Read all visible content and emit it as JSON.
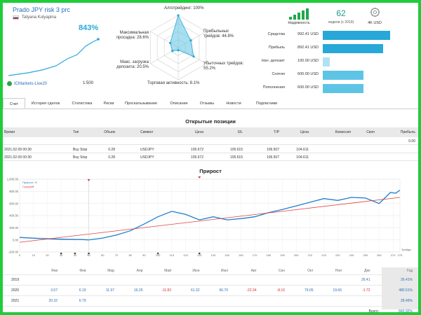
{
  "header": {
    "title": "Prado JPY risk 3 prc",
    "author": "Tatyana Kulyapina",
    "growth_pct": "843%",
    "broker": "ICMarkets-Live20",
    "leverage": "1:500"
  },
  "radar": {
    "labels": {
      "algo": "Алготрейдинг: 100%",
      "profit_trades": "Прибыльных трейдов: 44.8%",
      "loss_trades": "Убыточных трейдов: 55.2%",
      "activity": "Торговая активность: 8.1%",
      "load": "Макс. загрузка депозита: 20.5%",
      "drawdown": "Максимальная просадка: 28.6%"
    },
    "values": [
      1.0,
      0.448,
      0.552,
      0.081,
      0.205,
      0.286
    ]
  },
  "stats": {
    "reliability_label": "Надежность",
    "reliability_level": 5,
    "weeks_value": "62",
    "weeks_label": "недели (с 2019)",
    "deposit_label": "4K USD"
  },
  "finance": [
    {
      "label": "Средства",
      "value": "992.41 USD",
      "fill": 1.0
    },
    {
      "label": "Прибыль",
      "value": "892.41 USD",
      "fill": 0.9
    },
    {
      "label": "Нач. депозит",
      "value": "100.00 USD",
      "fill": 0.1
    },
    {
      "label": "Снятия",
      "value": "600.00 USD",
      "fill": 0.6
    },
    {
      "label": "Пополнения",
      "value": "600.00 USD",
      "fill": 0.6
    }
  ],
  "tabs": [
    "Счет",
    "История сделок",
    "Статистика",
    "Риски",
    "Проскальзывание",
    "Описание",
    "Отзывы",
    "Новости",
    "Подписчики"
  ],
  "positions": {
    "title": "Открытые позиции",
    "headers": [
      "Время",
      "Тип",
      "Объем",
      "Символ",
      "Цена",
      "S/L",
      "T/P",
      "Цена",
      "Комиссия",
      "Своп",
      "Прибыль"
    ],
    "summary_profit": "0.00",
    "rows": [
      [
        "2021.02.09 00:30",
        "Buy Stop",
        "0.28",
        "USDJPY",
        "105.672",
        "105.615",
        "106.507",
        "104.611",
        "",
        "",
        ""
      ],
      [
        "2021.02.09 00:30",
        "Buy Stop",
        "0.28",
        "USDJPY",
        "105.672",
        "105.615",
        "106.507",
        "104.611",
        "",
        "",
        ""
      ]
    ]
  },
  "growth": {
    "title": "Прирост",
    "legend": [
      "Прирост, %",
      "Средний"
    ],
    "yticks": [
      "1,000.00",
      "800.00",
      "600.00",
      "400.00",
      "200.00",
      "0.00",
      "-200.00"
    ],
    "xticks": [
      "0",
      "10",
      "20",
      "30",
      "40",
      "50",
      "60",
      "70",
      "80",
      "90",
      "100",
      "110",
      "120",
      "130",
      "140",
      "150",
      "160",
      "170",
      "180",
      "190",
      "200",
      "210",
      "220",
      "230",
      "240",
      "250",
      "260",
      "270",
      "275"
    ],
    "x_axis_label": "Трейды"
  },
  "chart_data": {
    "type": "line",
    "ylim": [
      -200,
      1000
    ],
    "xlim": [
      0,
      275
    ],
    "series": [
      {
        "name": "Прирост, %",
        "x": [
          0,
          15,
          30,
          45,
          50,
          60,
          70,
          80,
          90,
          100,
          110,
          120,
          130,
          140,
          150,
          160,
          170,
          180,
          190,
          200,
          210,
          220,
          230,
          240,
          250,
          260,
          268,
          272,
          275
        ],
        "values": [
          40,
          20,
          10,
          5,
          0,
          30,
          80,
          150,
          260,
          380,
          470,
          420,
          330,
          380,
          330,
          350,
          380,
          450,
          500,
          560,
          620,
          680,
          650,
          700,
          690,
          600,
          780,
          770,
          820
        ]
      },
      {
        "name": "Средний",
        "x": [
          0,
          275
        ],
        "values": [
          -40,
          700
        ]
      }
    ]
  },
  "monthly": {
    "months": [
      "Янв",
      "Фев",
      "Мар",
      "Апр",
      "Май",
      "Июн",
      "Июл",
      "Авг",
      "Сен",
      "Окт",
      "Ноя",
      "Дек",
      "Год"
    ],
    "years": [
      {
        "year": "2019",
        "cells": [
          "",
          "",
          "",
          "",
          "",
          "",
          "",
          "",
          "",
          "",
          "",
          "26.41"
        ],
        "total": "26.41%"
      },
      {
        "year": "2020",
        "cells": [
          "3.57",
          "6.19",
          "11.97",
          "16.25",
          "-11.83",
          "61.32",
          "66.70",
          "-22.34",
          "-8.16",
          "79.05",
          "19.66",
          "-1.72"
        ],
        "total": "480.51%"
      },
      {
        "year": "2021",
        "cells": [
          "20.32",
          "6.79",
          "",
          "",
          "",
          "",
          "",
          "",
          "",
          "",
          "",
          ""
        ],
        "total": "28.49%"
      }
    ],
    "total_label": "Всего:",
    "total_value": "842.92%"
  }
}
